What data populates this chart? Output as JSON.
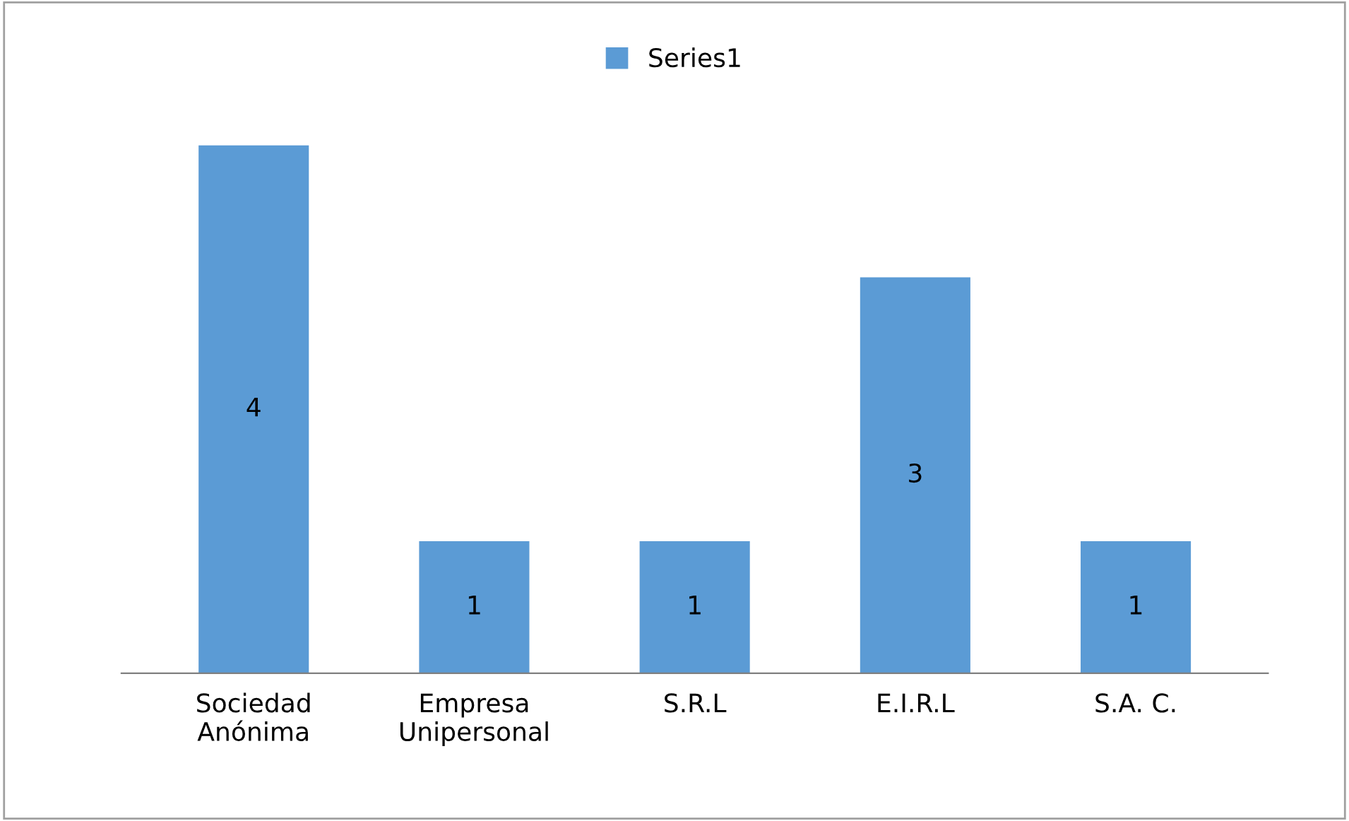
{
  "chart_data": {
    "type": "bar",
    "categories": [
      "Sociedad\nAnónima",
      "Empresa\nUnipersonal",
      "S.R.L",
      "E.I.R.L",
      "S.A. C."
    ],
    "series": [
      {
        "name": "Series1",
        "color": "#5b9bd5",
        "values": [
          4,
          1,
          1,
          3,
          1
        ]
      }
    ],
    "data_labels": true,
    "legend": "top",
    "grid": false
  }
}
